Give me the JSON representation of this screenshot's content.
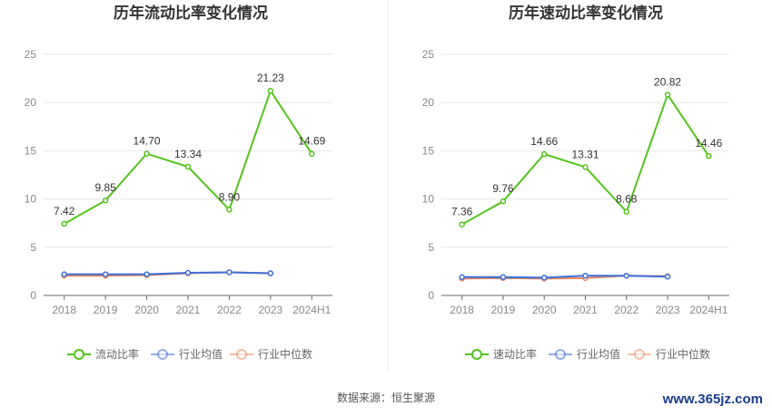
{
  "chart_data": [
    {
      "type": "line",
      "title": "历年流动比率变化情况",
      "categories": [
        "2018",
        "2019",
        "2020",
        "2021",
        "2022",
        "2023",
        "2024H1"
      ],
      "ylim": [
        0,
        25
      ],
      "yticks": [
        0,
        5,
        10,
        15,
        20,
        25
      ],
      "grid": true,
      "legend": "bottom",
      "series": [
        {
          "name": "流动比率",
          "color": "#52c41a",
          "values": [
            7.42,
            9.85,
            14.7,
            13.34,
            8.9,
            21.23,
            14.69
          ],
          "labels": [
            "7.42",
            "9.85",
            "14.70",
            "13.34",
            "8.90",
            "21.23",
            "14.69"
          ]
        },
        {
          "name": "行业均值",
          "color": "#3b6fd8",
          "values": [
            2.2,
            2.2,
            2.2,
            2.35,
            2.4,
            2.3,
            null
          ]
        },
        {
          "name": "行业中位数",
          "color": "#f08a5d",
          "values": [
            2.05,
            2.05,
            2.1,
            2.3,
            2.4,
            2.3,
            null
          ]
        }
      ]
    },
    {
      "type": "line",
      "title": "历年速动比率变化情况",
      "categories": [
        "2018",
        "2019",
        "2020",
        "2021",
        "2022",
        "2023",
        "2024H1"
      ],
      "ylim": [
        0,
        25
      ],
      "yticks": [
        0,
        5,
        10,
        15,
        20,
        25
      ],
      "grid": true,
      "legend": "bottom",
      "series": [
        {
          "name": "速动比率",
          "color": "#52c41a",
          "values": [
            7.36,
            9.76,
            14.66,
            13.31,
            8.68,
            20.82,
            14.46
          ],
          "labels": [
            "7.36",
            "9.76",
            "14.66",
            "13.31",
            "8.68",
            "20.82",
            "14.46"
          ]
        },
        {
          "name": "行业均值",
          "color": "#3b6fd8",
          "values": [
            1.9,
            1.9,
            1.85,
            2.05,
            2.05,
            1.95,
            null
          ]
        },
        {
          "name": "行业中位数",
          "color": "#f08a5d",
          "values": [
            1.75,
            1.8,
            1.75,
            1.8,
            2.05,
            2.0,
            null
          ]
        }
      ]
    }
  ],
  "footer": {
    "source": "数据来源：恒生聚源",
    "watermark": "www.365jz.com"
  }
}
